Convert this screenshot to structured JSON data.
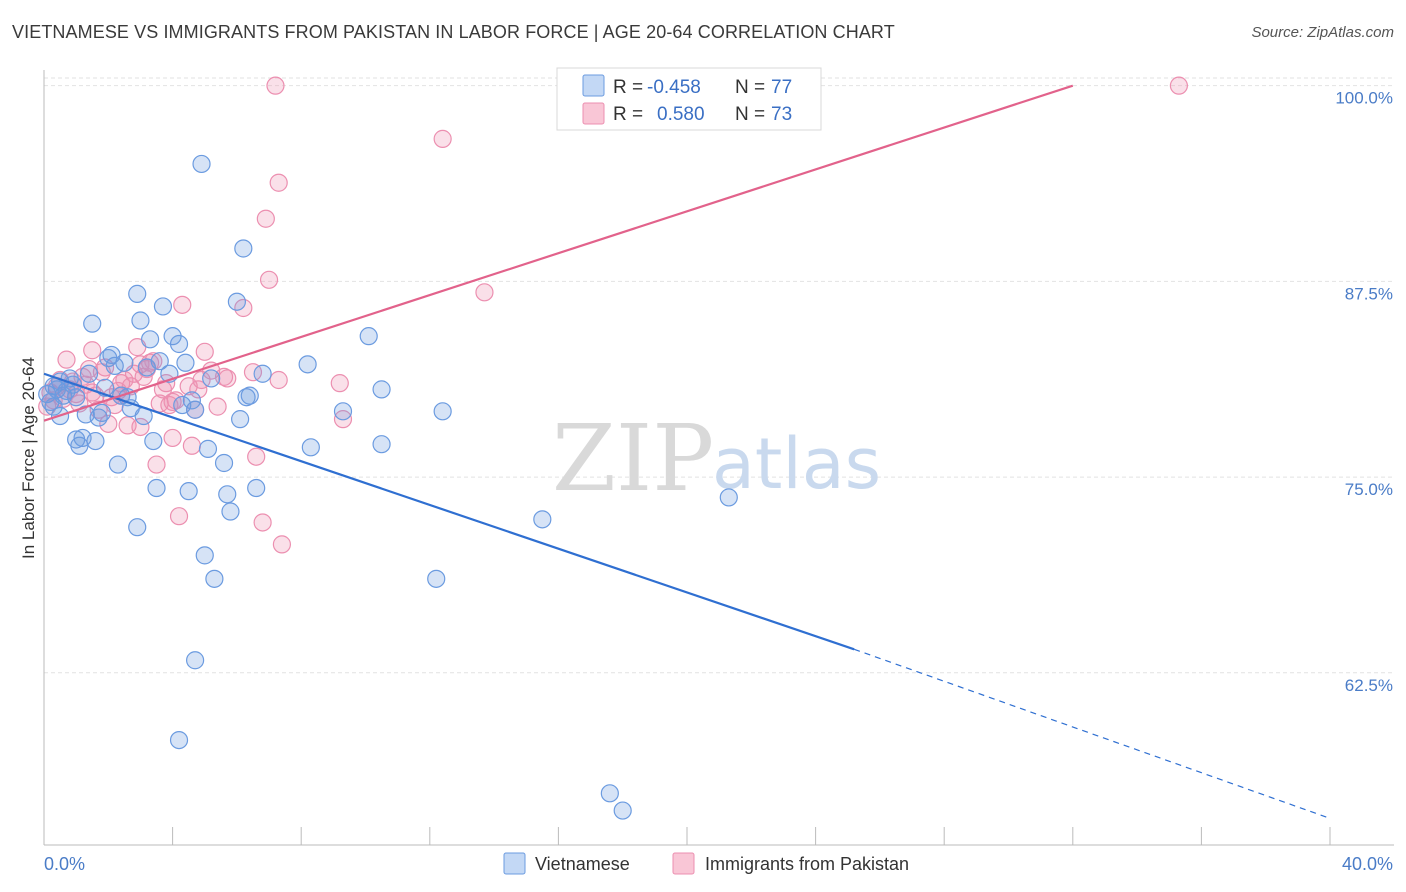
{
  "header": {
    "title": "VIETNAMESE VS IMMIGRANTS FROM PAKISTAN IN LABOR FORCE | AGE 20-64 CORRELATION CHART",
    "source": "Source: ZipAtlas.com"
  },
  "watermark": {
    "zip": "ZIP",
    "atlas": "atlas"
  },
  "chart_data": {
    "type": "scatter",
    "ylabel": "In Labor Force | Age 20-64",
    "xlim": [
      0,
      40
    ],
    "ylim": [
      51.5,
      101
    ],
    "x_tick_labels": [
      "0.0%",
      "40.0%"
    ],
    "y_ticks": [
      62.5,
      75.0,
      87.5,
      100.0
    ],
    "y_tick_labels": [
      "62.5%",
      "75.0%",
      "87.5%",
      "100.0%"
    ],
    "grid": true,
    "colors": {
      "vietnamese": "#6b9be0",
      "pakistan": "#ec8fb0",
      "blue_line": "#2f6fd1",
      "pink_line": "#e2628b"
    },
    "legend": {
      "rows": [
        {
          "r_label": "R =",
          "r_value": "-0.458",
          "n_label": "N =",
          "n_value": "77"
        },
        {
          "r_label": "R =",
          "r_value": "0.580",
          "n_label": "N =",
          "n_value": "73"
        }
      ],
      "placement": "top-center"
    },
    "bottom_legend": [
      "Vietnamese",
      "Immigrants from Pakistan"
    ],
    "series": [
      {
        "name": "Vietnamese",
        "trend": {
          "x0": 0,
          "y0": 81.6,
          "x1": 25.2,
          "y1": 64.0,
          "dash_to_x": 40,
          "dash_to_y": 53.2
        },
        "points": [
          [
            0.1,
            80.3
          ],
          [
            0.2,
            79.8
          ],
          [
            0.3,
            80.8
          ],
          [
            0.3,
            79.5
          ],
          [
            0.4,
            80.6
          ],
          [
            0.5,
            78.9
          ],
          [
            0.5,
            81.1
          ],
          [
            0.6,
            80.2
          ],
          [
            0.7,
            80.5
          ],
          [
            0.8,
            81.3
          ],
          [
            0.9,
            80.9
          ],
          [
            1.0,
            80.1
          ],
          [
            1.0,
            77.4
          ],
          [
            1.1,
            77.0
          ],
          [
            1.2,
            77.5
          ],
          [
            1.3,
            79.0
          ],
          [
            1.4,
            81.6
          ],
          [
            1.5,
            84.8
          ],
          [
            1.6,
            77.3
          ],
          [
            1.7,
            78.8
          ],
          [
            1.8,
            79.1
          ],
          [
            1.9,
            80.7
          ],
          [
            2.0,
            82.6
          ],
          [
            2.1,
            82.8
          ],
          [
            2.2,
            82.1
          ],
          [
            2.3,
            75.8
          ],
          [
            2.4,
            80.2
          ],
          [
            2.5,
            82.3
          ],
          [
            2.6,
            80.1
          ],
          [
            2.7,
            79.4
          ],
          [
            2.9,
            71.8
          ],
          [
            2.9,
            86.7
          ],
          [
            3.0,
            85.0
          ],
          [
            3.1,
            78.9
          ],
          [
            3.2,
            82.0
          ],
          [
            3.3,
            83.8
          ],
          [
            3.4,
            77.3
          ],
          [
            3.5,
            74.3
          ],
          [
            3.6,
            82.4
          ],
          [
            3.7,
            85.9
          ],
          [
            3.9,
            81.6
          ],
          [
            4.0,
            84.0
          ],
          [
            4.2,
            83.5
          ],
          [
            4.3,
            79.6
          ],
          [
            4.4,
            82.3
          ],
          [
            4.5,
            74.1
          ],
          [
            4.6,
            79.9
          ],
          [
            4.7,
            79.3
          ],
          [
            4.9,
            95.0
          ],
          [
            5.0,
            70.0
          ],
          [
            5.1,
            76.8
          ],
          [
            5.2,
            81.3
          ],
          [
            5.3,
            68.5
          ],
          [
            5.6,
            75.9
          ],
          [
            5.7,
            73.9
          ],
          [
            5.8,
            72.8
          ],
          [
            6.0,
            86.2
          ],
          [
            6.1,
            78.7
          ],
          [
            6.3,
            80.1
          ],
          [
            6.4,
            80.2
          ],
          [
            6.6,
            74.3
          ],
          [
            6.8,
            81.6
          ],
          [
            4.7,
            63.3
          ],
          [
            4.2,
            58.2
          ],
          [
            8.2,
            82.2
          ],
          [
            8.3,
            76.9
          ],
          [
            9.3,
            79.2
          ],
          [
            10.1,
            84.0
          ],
          [
            10.5,
            77.1
          ],
          [
            10.5,
            80.6
          ],
          [
            12.4,
            79.2
          ],
          [
            12.2,
            68.5
          ],
          [
            15.5,
            72.3
          ],
          [
            21.3,
            73.7
          ],
          [
            17.6,
            54.8
          ],
          [
            18.0,
            53.7
          ],
          [
            6.2,
            89.6
          ]
        ]
      },
      {
        "name": "Immigrants from Pakistan",
        "trend": {
          "x0": 0,
          "y0": 78.6,
          "x1": 32.0,
          "y1": 100.0
        },
        "points": [
          [
            0.1,
            79.5
          ],
          [
            0.2,
            80.4
          ],
          [
            0.3,
            79.9
          ],
          [
            0.4,
            80.8
          ],
          [
            0.5,
            81.2
          ],
          [
            0.6,
            80.0
          ],
          [
            0.7,
            82.5
          ],
          [
            0.8,
            80.6
          ],
          [
            0.9,
            81.1
          ],
          [
            1.0,
            80.3
          ],
          [
            1.1,
            79.7
          ],
          [
            1.2,
            81.4
          ],
          [
            1.3,
            80.9
          ],
          [
            1.4,
            81.9
          ],
          [
            1.5,
            83.1
          ],
          [
            1.6,
            80.2
          ],
          [
            1.7,
            79.3
          ],
          [
            1.8,
            81.7
          ],
          [
            1.9,
            82.0
          ],
          [
            2.0,
            78.4
          ],
          [
            2.1,
            80.1
          ],
          [
            2.2,
            79.6
          ],
          [
            2.3,
            80.5
          ],
          [
            2.4,
            80.2
          ],
          [
            2.5,
            81.2
          ],
          [
            2.6,
            78.3
          ],
          [
            2.7,
            80.8
          ],
          [
            2.8,
            81.6
          ],
          [
            2.9,
            83.3
          ],
          [
            3.0,
            82.2
          ],
          [
            3.1,
            81.4
          ],
          [
            3.2,
            81.9
          ],
          [
            3.3,
            82.3
          ],
          [
            3.4,
            82.4
          ],
          [
            3.5,
            75.8
          ],
          [
            3.6,
            79.7
          ],
          [
            3.7,
            80.6
          ],
          [
            3.8,
            81.0
          ],
          [
            3.9,
            79.6
          ],
          [
            4.0,
            77.5
          ],
          [
            4.1,
            79.9
          ],
          [
            4.2,
            72.5
          ],
          [
            4.3,
            86.0
          ],
          [
            4.5,
            80.8
          ],
          [
            4.6,
            77.0
          ],
          [
            4.7,
            79.3
          ],
          [
            4.8,
            80.6
          ],
          [
            4.9,
            81.2
          ],
          [
            5.0,
            83.0
          ],
          [
            5.2,
            81.8
          ],
          [
            5.4,
            79.5
          ],
          [
            5.7,
            81.3
          ],
          [
            6.2,
            85.8
          ],
          [
            6.5,
            81.7
          ],
          [
            6.6,
            76.3
          ],
          [
            6.8,
            72.1
          ],
          [
            7.0,
            87.6
          ],
          [
            7.3,
            93.8
          ],
          [
            7.4,
            70.7
          ],
          [
            6.9,
            91.5
          ],
          [
            7.3,
            81.2
          ],
          [
            9.2,
            81.0
          ],
          [
            9.3,
            78.7
          ],
          [
            12.4,
            96.6
          ],
          [
            13.7,
            86.8
          ],
          [
            7.2,
            100.0
          ],
          [
            16.9,
            100.0
          ],
          [
            35.3,
            100.0
          ],
          [
            4.0,
            79.8
          ],
          [
            3.0,
            78.2
          ],
          [
            1.5,
            80.4
          ],
          [
            2.4,
            81.0
          ],
          [
            5.6,
            81.4
          ]
        ]
      }
    ]
  }
}
